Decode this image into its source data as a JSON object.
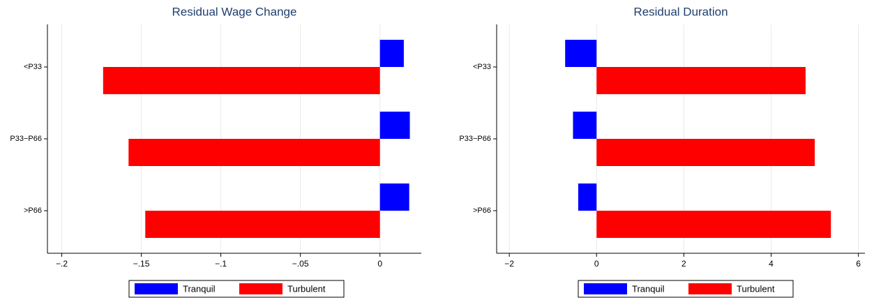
{
  "chart_data": [
    {
      "type": "barh",
      "title": "Residual Wage Change",
      "categories": [
        "<P33",
        "P33−P66",
        ">P66"
      ],
      "series": [
        {
          "name": "Tranquil",
          "color": "#0000ff",
          "values": [
            0.015,
            0.0188,
            0.0184
          ]
        },
        {
          "name": "Turbulent",
          "color": "#ff0000",
          "values": [
            -0.174,
            -0.158,
            -0.1475
          ]
        }
      ],
      "xlim": [
        -0.209,
        0.026
      ],
      "xticks": [
        {
          "value": -0.2,
          "label": "−.2"
        },
        {
          "value": -0.15,
          "label": "−.15"
        },
        {
          "value": -0.1,
          "label": "−.1"
        },
        {
          "value": -0.05,
          "label": "−.05"
        },
        0
      ],
      "grid": true,
      "legend": "bottom"
    },
    {
      "type": "barh",
      "title": "Residual Duration",
      "categories": [
        "<P33",
        "P33−P66",
        ">P66"
      ],
      "series": [
        {
          "name": "Tranquil",
          "color": "#0000ff",
          "values": [
            -0.72,
            -0.54,
            -0.42
          ]
        },
        {
          "name": "Turbulent",
          "color": "#ff0000",
          "values": [
            4.79,
            5.0,
            5.37
          ]
        }
      ],
      "xlim": [
        -2.29,
        6.15
      ],
      "xticks": [
        {
          "value": -2,
          "label": "−2"
        },
        0,
        2,
        4,
        6
      ],
      "grid": true,
      "legend": "bottom"
    }
  ]
}
